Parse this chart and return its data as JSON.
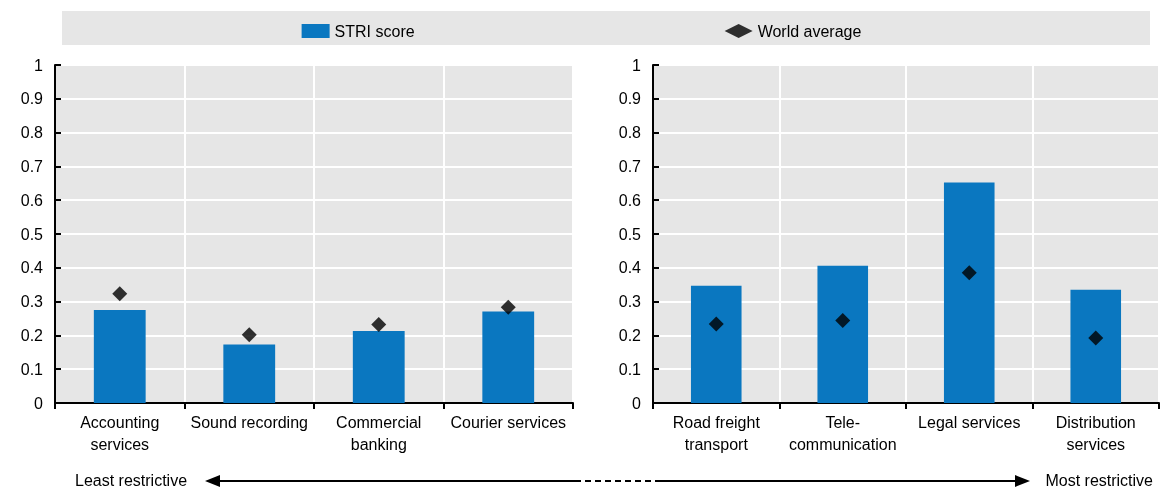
{
  "chart_data": [
    {
      "type": "bar",
      "categories": [
        "Accounting\nservices",
        "Sound recording",
        "Commercial\nbanking",
        "Courier services"
      ],
      "series": [
        {
          "name": "STRI score",
          "color": "#0a77c0",
          "values": [
            0.275,
            0.173,
            0.213,
            0.271
          ]
        },
        {
          "name": "World average",
          "type": "scatter",
          "color": "#000000",
          "values": [
            0.323,
            0.202,
            0.232,
            0.283
          ]
        }
      ],
      "ylim": [
        0,
        1
      ],
      "yticks": [
        0,
        0.1,
        0.2,
        0.3,
        0.4,
        0.5,
        0.6,
        0.7,
        0.8,
        0.9,
        1
      ],
      "grid": true,
      "legend": "top",
      "marker": "diamond",
      "annotations": [
        "Least restrictive",
        "Most restrictive"
      ]
    },
    {
      "type": "bar",
      "categories": [
        "Road freight\ntransport",
        "Tele-\ncommunication",
        "Legal services",
        "Distribution\nservices"
      ],
      "series": [
        {
          "color": "#0a77c0",
          "values": [
            0.347,
            0.406,
            0.652,
            0.335
          ]
        },
        {
          "type": "scatter",
          "color": "#000000",
          "values": [
            0.234,
            0.244,
            0.385,
            0.192
          ]
        }
      ],
      "ylim": [
        0,
        1
      ],
      "yticks": [
        0,
        0.1,
        0.2,
        0.3,
        0.4,
        0.5,
        0.6,
        0.7,
        0.8,
        0.9,
        1
      ],
      "grid": true,
      "marker": "diamond"
    }
  ]
}
